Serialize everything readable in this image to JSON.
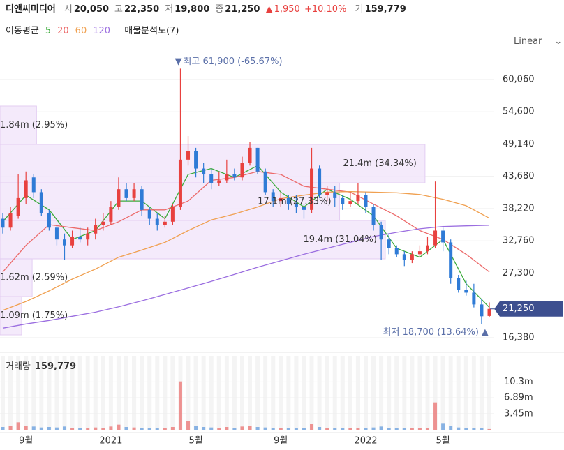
{
  "header": {
    "name": "디앤씨미디어",
    "items": [
      {
        "label": "시",
        "value": "20,050"
      },
      {
        "label": "고",
        "value": "22,350"
      },
      {
        "label": "저",
        "value": "19,800"
      },
      {
        "label": "종",
        "value": "21,250"
      }
    ],
    "change": "1,950",
    "change_pct": "+10.10%",
    "volume_label": "거",
    "volume_value": "159,779"
  },
  "legend": {
    "ma_title": "이동평균",
    "profile": "매물분석도(7)"
  },
  "scale_button": "Linear",
  "chart_data": {
    "type": "candlestick",
    "categories": [
      null,
      null,
      null,
      "9월",
      null,
      null,
      null,
      null,
      null,
      null,
      null,
      null,
      null,
      null,
      "2021",
      null,
      null,
      null,
      null,
      null,
      null,
      null,
      null,
      null,
      null,
      "5월",
      null,
      null,
      null,
      null,
      null,
      null,
      null,
      null,
      null,
      null,
      "9월",
      null,
      null,
      null,
      null,
      null,
      null,
      null,
      null,
      null,
      null,
      "2022",
      null,
      null,
      null,
      null,
      null,
      null,
      null,
      null,
      null,
      "5월",
      null,
      null,
      null,
      null,
      null,
      null
    ],
    "candles": [
      [
        36500,
        37500,
        34000,
        35000
      ],
      [
        35000,
        38500,
        34500,
        37500
      ],
      [
        37000,
        44000,
        36500,
        40000
      ],
      [
        40000,
        44500,
        39000,
        43000
      ],
      [
        43500,
        44000,
        40000,
        41000
      ],
      [
        41000,
        41500,
        37000,
        37500
      ],
      [
        37500,
        38000,
        34500,
        35000
      ],
      [
        35000,
        35500,
        32000,
        33000
      ],
      [
        33000,
        34000,
        29500,
        32000
      ],
      [
        32000,
        34500,
        31500,
        33500
      ],
      [
        33500,
        35000,
        32500,
        33000
      ],
      [
        33000,
        35000,
        32000,
        34000
      ],
      [
        34000,
        36500,
        33000,
        35500
      ],
      [
        35500,
        37500,
        34500,
        36000
      ],
      [
        36000,
        39500,
        35500,
        38500
      ],
      [
        38500,
        43500,
        38000,
        41500
      ],
      [
        41500,
        42500,
        39500,
        40000
      ],
      [
        40000,
        42500,
        39500,
        41500
      ],
      [
        41500,
        42000,
        37000,
        38000
      ],
      [
        38000,
        38500,
        35500,
        36500
      ],
      [
        36500,
        37500,
        34500,
        35500
      ],
      [
        35500,
        37000,
        35000,
        36000
      ],
      [
        36000,
        39000,
        35500,
        38500
      ],
      [
        38500,
        61900,
        38000,
        46500
      ],
      [
        46500,
        50500,
        45500,
        48000
      ],
      [
        48000,
        48500,
        43500,
        45000
      ],
      [
        45000,
        46000,
        42500,
        44000
      ],
      [
        44000,
        45000,
        41500,
        42500
      ],
      [
        42500,
        44500,
        42000,
        43000
      ],
      [
        43000,
        46500,
        42500,
        44000
      ],
      [
        44000,
        45000,
        43000,
        43500
      ],
      [
        43500,
        47000,
        43000,
        46000
      ],
      [
        46000,
        49500,
        45500,
        48500
      ],
      [
        48500,
        48500,
        44000,
        44500
      ],
      [
        44500,
        45000,
        40500,
        41000
      ],
      [
        41000,
        41500,
        38500,
        39500
      ],
      [
        39500,
        41000,
        38500,
        40000
      ],
      [
        40000,
        40500,
        38000,
        39000
      ],
      [
        39000,
        40500,
        37500,
        38500
      ],
      [
        38500,
        39000,
        36500,
        38000
      ],
      [
        38000,
        48500,
        37500,
        45000
      ],
      [
        45000,
        45500,
        40000,
        40500
      ],
      [
        40500,
        42000,
        39500,
        41000
      ],
      [
        41000,
        42000,
        38500,
        40000
      ],
      [
        40000,
        40500,
        38000,
        39000
      ],
      [
        39000,
        41000,
        38500,
        39500
      ],
      [
        39500,
        42500,
        39000,
        40500
      ],
      [
        40500,
        41000,
        37500,
        38500
      ],
      [
        38500,
        39000,
        34500,
        35500
      ],
      [
        35500,
        36000,
        29500,
        33000
      ],
      [
        33000,
        34000,
        30500,
        31500
      ],
      [
        31500,
        32000,
        30000,
        30500
      ],
      [
        30500,
        31000,
        28500,
        29500
      ],
      [
        29500,
        31000,
        29000,
        30500
      ],
      [
        30500,
        32000,
        30000,
        31000
      ],
      [
        31000,
        33500,
        30500,
        32000
      ],
      [
        32000,
        42800,
        31500,
        34500
      ],
      [
        34500,
        35000,
        31000,
        32500
      ],
      [
        32500,
        33000,
        25500,
        26500
      ],
      [
        26500,
        27000,
        24000,
        24500
      ],
      [
        24500,
        26000,
        23500,
        24000
      ],
      [
        24000,
        25500,
        21500,
        22000
      ],
      [
        22000,
        23000,
        18700,
        20000
      ],
      [
        20050,
        22350,
        19800,
        21250
      ]
    ],
    "up_color": "#e8413f",
    "down_color": "#2f7bd6",
    "ylim": [
      14490,
      64660
    ],
    "yticks": [
      {
        "value": 16380,
        "label": "16,380"
      },
      {
        "value": 27300,
        "label": "27,300"
      },
      {
        "value": 32760,
        "label": "32,760"
      },
      {
        "value": 38220,
        "label": "38,220"
      },
      {
        "value": 43680,
        "label": "43,680"
      },
      {
        "value": 49140,
        "label": "49,140"
      },
      {
        "value": 54600,
        "label": "54,600"
      },
      {
        "value": 60060,
        "label": "60,060"
      }
    ],
    "grid": true,
    "current_price": {
      "value": 21250,
      "label": "21,250"
    },
    "high_annotation": {
      "value": 61900,
      "label": "최고 61,900 (-65.67%)"
    },
    "low_annotation": {
      "value": 18700,
      "label": "최저 18,700 (13.64%)"
    },
    "moving_averages": [
      {
        "name": "5",
        "color": "#3cab3c",
        "x": [
          0,
          3,
          6,
          9,
          12,
          15,
          18,
          21,
          24,
          27,
          30,
          33,
          36,
          39,
          42,
          45,
          48,
          51,
          54,
          57,
          60,
          63
        ],
        "values": [
          36000,
          40500,
          38000,
          33000,
          34500,
          39500,
          39500,
          36500,
          44000,
          45000,
          43500,
          45500,
          41000,
          38500,
          41500,
          39800,
          37000,
          31500,
          30000,
          33000,
          25500,
          21500
        ]
      },
      {
        "name": "20",
        "color": "#ec6a6a",
        "x": [
          0,
          3,
          6,
          9,
          12,
          15,
          18,
          21,
          24,
          27,
          30,
          33,
          36,
          39,
          42,
          45,
          48,
          51,
          54,
          57,
          60,
          63
        ],
        "values": [
          27500,
          32000,
          35500,
          35000,
          34500,
          36000,
          38000,
          38000,
          39500,
          43000,
          43500,
          44500,
          44000,
          42000,
          41500,
          41000,
          39000,
          37000,
          34500,
          33000,
          30500,
          27500
        ]
      },
      {
        "name": "60",
        "color": "#f0a050",
        "x": [
          0,
          3,
          6,
          9,
          12,
          15,
          18,
          21,
          24,
          27,
          30,
          33,
          36,
          39,
          42,
          45,
          48,
          51,
          54,
          57,
          60,
          63
        ],
        "values": [
          21000,
          22500,
          24300,
          26300,
          28000,
          30000,
          31200,
          32500,
          34500,
          36300,
          37300,
          38500,
          39900,
          40500,
          41000,
          41100,
          41000,
          40900,
          40600,
          39800,
          38700,
          36600
        ]
      },
      {
        "name": "120",
        "color": "#9b6ee0",
        "x": [
          0,
          3,
          6,
          9,
          12,
          15,
          18,
          21,
          24,
          27,
          30,
          33,
          36,
          39,
          42,
          45,
          48,
          51,
          54,
          57,
          60,
          63
        ],
        "values": [
          18000,
          18700,
          19300,
          20000,
          20700,
          21600,
          22600,
          23700,
          24800,
          25900,
          27100,
          28300,
          29400,
          30500,
          31500,
          32500,
          33500,
          34200,
          34800,
          35200,
          35300,
          35400
        ]
      }
    ],
    "volume_profile": [
      {
        "low": 49080,
        "high": 55570,
        "volume": 1840000,
        "label": "1.84m (2.95%)"
      },
      {
        "low": 42580,
        "high": 49080,
        "volume": 21400000,
        "label": "21.4m (34.34%)"
      },
      {
        "low": 36210,
        "high": 42580,
        "volume": 17100000,
        "label": "17.1m (27.33%)"
      },
      {
        "low": 29720,
        "high": 36210,
        "volume": 19400000,
        "label": "19.4m (31.04%)"
      },
      {
        "low": 23340,
        "high": 29720,
        "volume": 1620000,
        "label": "1.62m (2.59%)"
      },
      {
        "low": 16850,
        "high": 23340,
        "volume": 1090000,
        "label": "1.09m (1.75%)"
      }
    ],
    "volume": {
      "title": "거래량",
      "current": "159,779",
      "values": [
        600000,
        900000,
        1600000,
        800000,
        700000,
        500000,
        600000,
        500000,
        700000,
        400000,
        300000,
        400000,
        500000,
        400000,
        700000,
        1100000,
        600000,
        500000,
        400000,
        300000,
        300000,
        300000,
        600000,
        10400000,
        1800000,
        900000,
        600000,
        500000,
        400000,
        600000,
        400000,
        700000,
        900000,
        600000,
        500000,
        400000,
        300000,
        300000,
        300000,
        300000,
        1200000,
        600000,
        400000,
        300000,
        300000,
        300000,
        400000,
        300000,
        500000,
        700000,
        400000,
        300000,
        300000,
        300000,
        300000,
        400000,
        5900000,
        1300000,
        800000,
        500000,
        300000,
        400000,
        300000,
        159779
      ],
      "ylim": [
        0,
        15900000
      ],
      "yticks": [
        {
          "value": 3450000,
          "label": "3.45m"
        },
        {
          "value": 6890000,
          "label": "6.89m"
        },
        {
          "value": 10300000,
          "label": "10.3m"
        }
      ]
    }
  }
}
